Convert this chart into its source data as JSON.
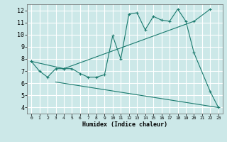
{
  "xlabel": "Humidex (Indice chaleur)",
  "bg_color": "#cce8e8",
  "line_color": "#1a7a6e",
  "grid_color": "#ffffff",
  "xlim": [
    -0.5,
    23.5
  ],
  "ylim": [
    3.5,
    12.5
  ],
  "yticks": [
    4,
    5,
    6,
    7,
    8,
    9,
    10,
    11,
    12
  ],
  "xticks": [
    0,
    1,
    2,
    3,
    4,
    5,
    6,
    7,
    8,
    9,
    10,
    11,
    12,
    13,
    14,
    15,
    16,
    17,
    18,
    19,
    20,
    21,
    22,
    23
  ],
  "line1_x": [
    0,
    1,
    2,
    3,
    4,
    5,
    6,
    7,
    8,
    9,
    10,
    11,
    12,
    13,
    14,
    15,
    16,
    17,
    18,
    19,
    20,
    22,
    23
  ],
  "line1_y": [
    7.8,
    7.0,
    6.5,
    7.2,
    7.2,
    7.2,
    6.8,
    6.5,
    6.5,
    6.7,
    9.9,
    8.0,
    11.7,
    11.8,
    10.4,
    11.5,
    11.2,
    11.1,
    12.1,
    11.1,
    8.5,
    5.3,
    4.0
  ],
  "line2_x": [
    0,
    4,
    20,
    22
  ],
  "line2_y": [
    7.8,
    7.2,
    11.1,
    12.1
  ],
  "line3_x": [
    3,
    23
  ],
  "line3_y": [
    6.1,
    4.0
  ],
  "marker": "+"
}
